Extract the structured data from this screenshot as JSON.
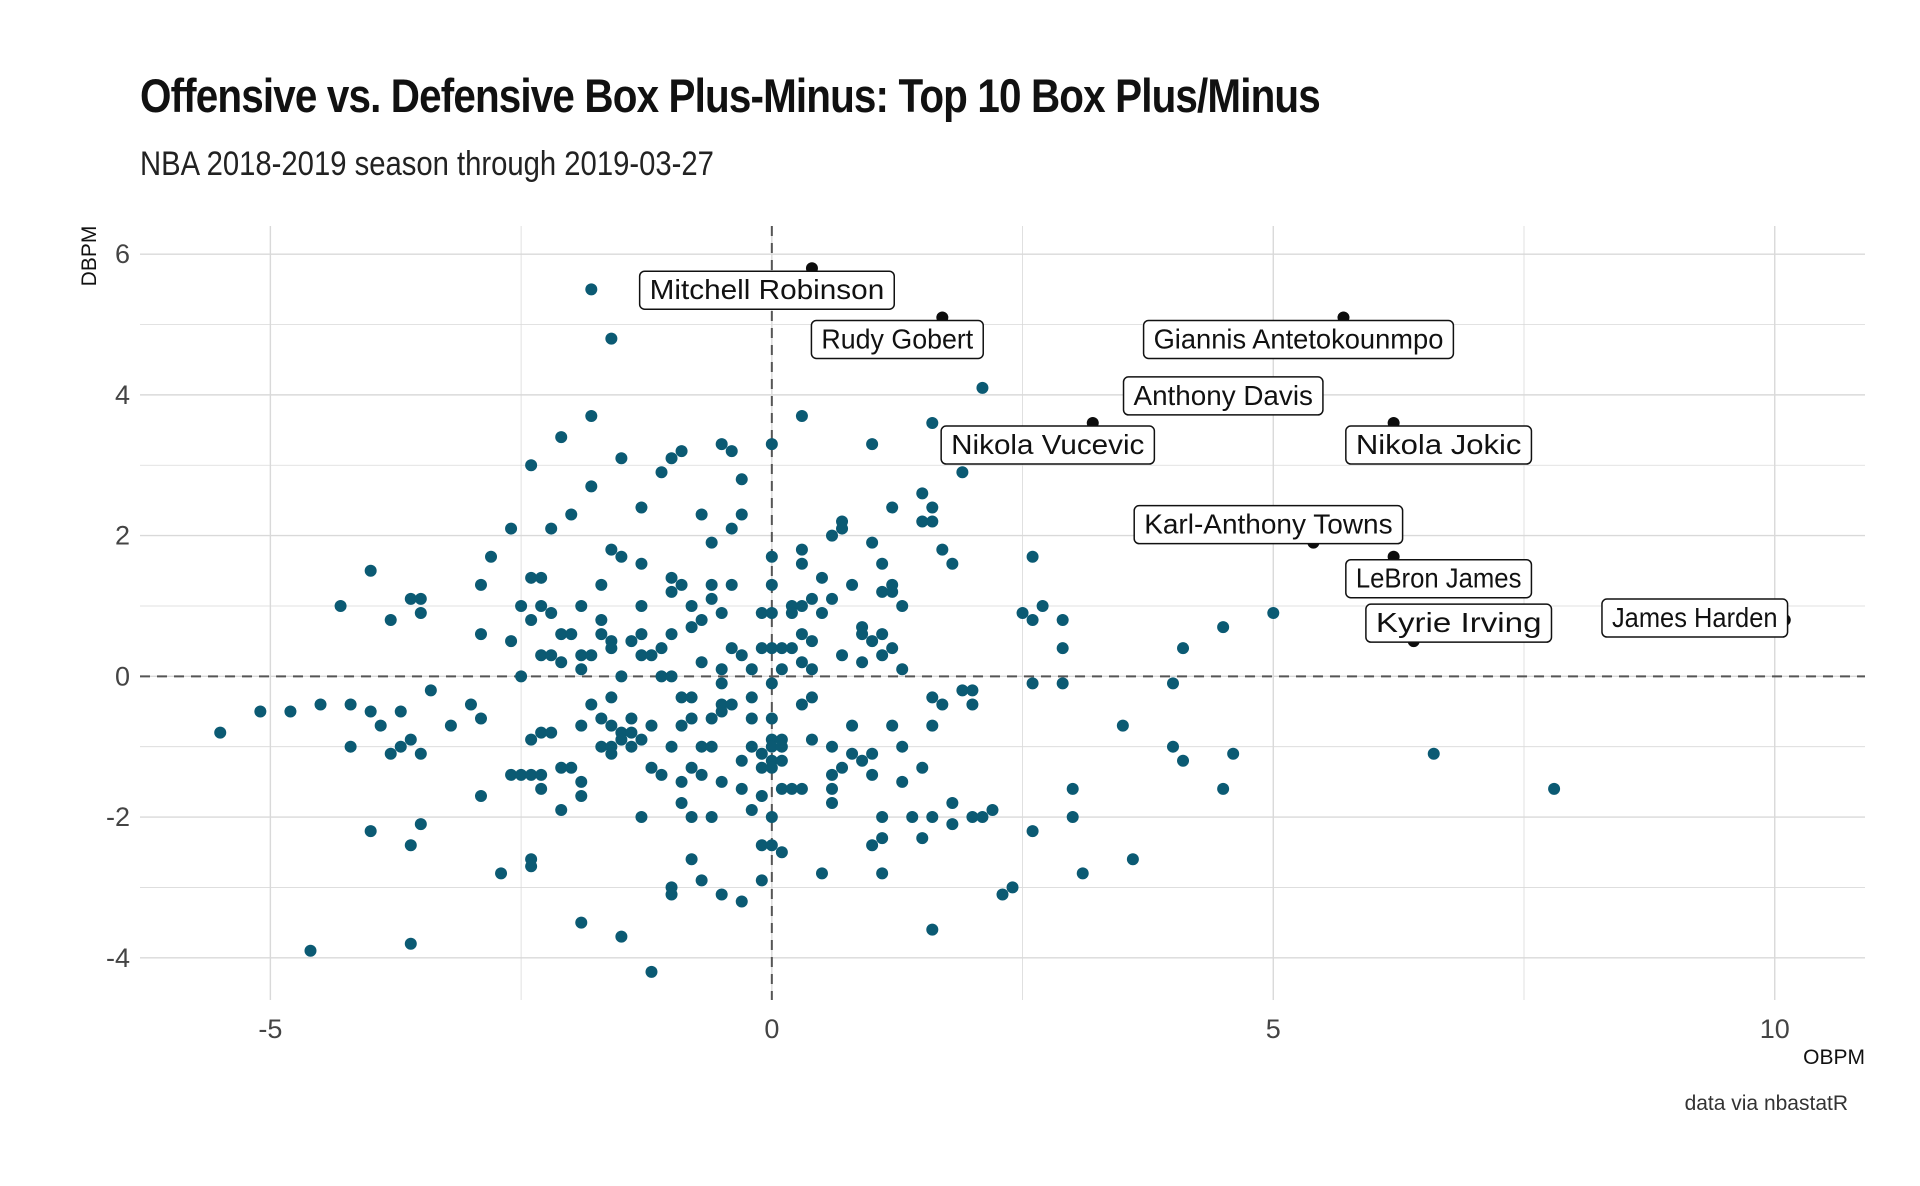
{
  "title": "Offensive vs. Defensive Box Plus-Minus: Top 10 Box Plus/Minus",
  "subtitle": "NBA 2018-2019 season through 2019-03-27",
  "caption": "data via nbastatR",
  "chart_data": {
    "type": "scatter",
    "xlabel": "OBPM",
    "ylabel": "DBPM",
    "xlim": [
      -6.3,
      10.9
    ],
    "ylim": [
      -4.6,
      6.4
    ],
    "x_ticks": [
      -5,
      0,
      5,
      10
    ],
    "y_ticks": [
      -4,
      -2,
      0,
      2,
      4,
      6
    ],
    "x_tick_labels": [
      "-5",
      "0",
      "5",
      "10"
    ],
    "y_tick_labels": [
      "-4",
      "-2",
      "0",
      "2",
      "4",
      "6"
    ],
    "reference_lines": {
      "x": 0,
      "y": 0
    },
    "grid": true,
    "colors": {
      "points": "#0b5a73",
      "highlight": "#0d0d0d",
      "grid": "#d9d9d9",
      "refline": "#555555"
    },
    "highlighted": [
      {
        "name": "Mitchell Robinson",
        "x": 0.4,
        "y": 5.8
      },
      {
        "name": "Rudy Gobert",
        "x": 1.7,
        "y": 5.1
      },
      {
        "name": "Giannis Antetokounmpo",
        "x": 5.7,
        "y": 5.1
      },
      {
        "name": "Anthony Davis",
        "x": 4.8,
        "y": 3.9
      },
      {
        "name": "Nikola Vucevic",
        "x": 3.2,
        "y": 3.6
      },
      {
        "name": "Nikola Jokic",
        "x": 6.2,
        "y": 3.6
      },
      {
        "name": "Karl-Anthony Towns",
        "x": 5.4,
        "y": 1.9
      },
      {
        "name": "LeBron James",
        "x": 6.2,
        "y": 1.7
      },
      {
        "name": "Kyrie Irving",
        "x": 6.4,
        "y": 0.5
      },
      {
        "name": "James Harden",
        "x": 10.1,
        "y": 0.8
      }
    ],
    "points": [
      [
        -5.5,
        -0.8
      ],
      [
        -5.1,
        -0.5
      ],
      [
        -4.8,
        -0.5
      ],
      [
        -4.6,
        -3.9
      ],
      [
        -4.5,
        -0.4
      ],
      [
        -4.3,
        1.0
      ],
      [
        -4.2,
        -0.4
      ],
      [
        -4.2,
        -1.0
      ],
      [
        -4.0,
        1.5
      ],
      [
        -4.0,
        -0.5
      ],
      [
        -4.0,
        -2.2
      ],
      [
        -3.9,
        -0.7
      ],
      [
        -3.8,
        0.8
      ],
      [
        -3.8,
        -1.1
      ],
      [
        -3.7,
        -0.5
      ],
      [
        -3.7,
        -1.0
      ],
      [
        -3.6,
        1.1
      ],
      [
        -3.6,
        -2.4
      ],
      [
        -3.6,
        -3.8
      ],
      [
        -3.6,
        -0.9
      ],
      [
        -3.5,
        1.1
      ],
      [
        -3.5,
        0.9
      ],
      [
        -3.5,
        -1.1
      ],
      [
        -3.5,
        -2.1
      ],
      [
        -3.4,
        -0.2
      ],
      [
        -3.2,
        -0.7
      ],
      [
        -3.0,
        -0.4
      ],
      [
        -2.9,
        1.3
      ],
      [
        -2.9,
        0.6
      ],
      [
        -2.9,
        -0.6
      ],
      [
        -2.9,
        -1.7
      ],
      [
        -2.8,
        1.7
      ],
      [
        -2.7,
        -2.8
      ],
      [
        -2.6,
        2.1
      ],
      [
        -2.6,
        0.5
      ],
      [
        -2.6,
        -1.4
      ],
      [
        -2.5,
        1.0
      ],
      [
        -2.5,
        0.0
      ],
      [
        -2.5,
        -1.4
      ],
      [
        -2.4,
        3.0
      ],
      [
        -2.4,
        1.4
      ],
      [
        -2.4,
        0.8
      ],
      [
        -2.4,
        -0.9
      ],
      [
        -2.4,
        -1.4
      ],
      [
        -2.4,
        -2.6
      ],
      [
        -2.4,
        -2.7
      ],
      [
        -2.3,
        1.4
      ],
      [
        -2.3,
        1.0
      ],
      [
        -2.3,
        0.3
      ],
      [
        -2.3,
        -0.8
      ],
      [
        -2.3,
        -1.4
      ],
      [
        -2.3,
        -1.6
      ],
      [
        -2.2,
        0.3
      ],
      [
        -2.2,
        0.9
      ],
      [
        -2.2,
        -0.8
      ],
      [
        -2.2,
        2.1
      ],
      [
        -2.1,
        0.6
      ],
      [
        -2.1,
        0.2
      ],
      [
        -2.1,
        -1.3
      ],
      [
        -2.1,
        -1.9
      ],
      [
        -2.1,
        3.4
      ],
      [
        -2.0,
        2.3
      ],
      [
        -2.0,
        0.6
      ],
      [
        -2.0,
        -1.3
      ],
      [
        -1.9,
        1.0
      ],
      [
        -1.9,
        0.3
      ],
      [
        -1.9,
        0.1
      ],
      [
        -1.9,
        -0.7
      ],
      [
        -1.9,
        -1.5
      ],
      [
        -1.9,
        -1.7
      ],
      [
        -1.9,
        -3.5
      ],
      [
        -1.8,
        5.5
      ],
      [
        -1.8,
        3.7
      ],
      [
        -1.8,
        2.7
      ],
      [
        -1.8,
        0.3
      ],
      [
        -1.8,
        -0.4
      ],
      [
        -1.7,
        1.3
      ],
      [
        -1.7,
        0.8
      ],
      [
        -1.7,
        0.6
      ],
      [
        -1.7,
        -0.6
      ],
      [
        -1.7,
        -1.0
      ],
      [
        -1.6,
        4.8
      ],
      [
        -1.6,
        1.8
      ],
      [
        -1.6,
        0.5
      ],
      [
        -1.6,
        0.4
      ],
      [
        -1.6,
        -0.3
      ],
      [
        -1.6,
        -0.7
      ],
      [
        -1.6,
        -1.0
      ],
      [
        -1.6,
        -1.1
      ],
      [
        -1.5,
        3.1
      ],
      [
        -1.5,
        1.7
      ],
      [
        -1.5,
        0.0
      ],
      [
        -1.5,
        -0.8
      ],
      [
        -1.5,
        -0.9
      ],
      [
        -1.5,
        -3.7
      ],
      [
        -1.4,
        0.5
      ],
      [
        -1.4,
        -0.6
      ],
      [
        -1.4,
        -0.8
      ],
      [
        -1.4,
        -1.0
      ],
      [
        -1.3,
        2.4
      ],
      [
        -1.3,
        1.6
      ],
      [
        -1.3,
        1.0
      ],
      [
        -1.3,
        0.6
      ],
      [
        -1.3,
        0.3
      ],
      [
        -1.3,
        -0.9
      ],
      [
        -1.3,
        -2.0
      ],
      [
        -1.2,
        0.3
      ],
      [
        -1.2,
        -0.7
      ],
      [
        -1.2,
        -1.3
      ],
      [
        -1.2,
        -4.2
      ],
      [
        -1.1,
        2.9
      ],
      [
        -1.1,
        0.4
      ],
      [
        -1.1,
        0.0
      ],
      [
        -1.1,
        -1.4
      ],
      [
        -1.0,
        3.1
      ],
      [
        -1.0,
        1.4
      ],
      [
        -1.0,
        1.2
      ],
      [
        -1.0,
        0.6
      ],
      [
        -1.0,
        0.0
      ],
      [
        -1.0,
        -1.0
      ],
      [
        -1.0,
        -3.0
      ],
      [
        -1.0,
        -3.1
      ],
      [
        -0.9,
        3.2
      ],
      [
        -0.9,
        1.3
      ],
      [
        -0.9,
        -0.3
      ],
      [
        -0.9,
        -0.7
      ],
      [
        -0.9,
        -1.5
      ],
      [
        -0.9,
        -1.8
      ],
      [
        -0.8,
        1.0
      ],
      [
        -0.8,
        0.7
      ],
      [
        -0.8,
        -0.3
      ],
      [
        -0.8,
        -0.6
      ],
      [
        -0.8,
        -1.3
      ],
      [
        -0.8,
        -2.0
      ],
      [
        -0.8,
        -2.6
      ],
      [
        -0.7,
        2.3
      ],
      [
        -0.7,
        0.8
      ],
      [
        -0.7,
        0.2
      ],
      [
        -0.7,
        -1.0
      ],
      [
        -0.7,
        -1.4
      ],
      [
        -0.7,
        -2.9
      ],
      [
        -0.6,
        1.9
      ],
      [
        -0.6,
        1.3
      ],
      [
        -0.6,
        1.1
      ],
      [
        -0.6,
        -0.6
      ],
      [
        -0.6,
        -1.0
      ],
      [
        -0.6,
        -2.0
      ],
      [
        -0.5,
        3.3
      ],
      [
        -0.5,
        0.9
      ],
      [
        -0.5,
        0.1
      ],
      [
        -0.5,
        -0.1
      ],
      [
        -0.5,
        -0.4
      ],
      [
        -0.5,
        -0.5
      ],
      [
        -0.5,
        -1.5
      ],
      [
        -0.5,
        -3.1
      ],
      [
        -0.4,
        3.2
      ],
      [
        -0.4,
        2.1
      ],
      [
        -0.4,
        1.3
      ],
      [
        -0.4,
        0.4
      ],
      [
        -0.4,
        -0.4
      ],
      [
        -0.3,
        2.8
      ],
      [
        -0.3,
        2.3
      ],
      [
        -0.3,
        0.3
      ],
      [
        -0.3,
        -1.2
      ],
      [
        -0.3,
        -1.6
      ],
      [
        -0.3,
        -3.2
      ],
      [
        -0.2,
        0.1
      ],
      [
        -0.2,
        -0.3
      ],
      [
        -0.2,
        -0.6
      ],
      [
        -0.2,
        -1.0
      ],
      [
        -0.2,
        -1.9
      ],
      [
        -0.1,
        0.9
      ],
      [
        -0.1,
        0.4
      ],
      [
        -0.1,
        -1.1
      ],
      [
        -0.1,
        -1.3
      ],
      [
        -0.1,
        -1.7
      ],
      [
        -0.1,
        -2.4
      ],
      [
        -0.1,
        -2.9
      ],
      [
        0.0,
        3.3
      ],
      [
        0.0,
        1.7
      ],
      [
        0.0,
        1.3
      ],
      [
        0.0,
        0.9
      ],
      [
        0.0,
        0.4
      ],
      [
        0.0,
        -0.1
      ],
      [
        0.0,
        -0.6
      ],
      [
        0.0,
        -0.9
      ],
      [
        0.0,
        -1.0
      ],
      [
        0.0,
        -1.2
      ],
      [
        0.0,
        -1.3
      ],
      [
        0.0,
        -2.0
      ],
      [
        0.0,
        -2.4
      ],
      [
        0.1,
        0.4
      ],
      [
        0.1,
        0.1
      ],
      [
        0.1,
        -0.9
      ],
      [
        0.1,
        -1.0
      ],
      [
        0.1,
        -1.2
      ],
      [
        0.1,
        -1.6
      ],
      [
        0.1,
        -2.5
      ],
      [
        0.2,
        1.0
      ],
      [
        0.2,
        0.9
      ],
      [
        0.2,
        0.4
      ],
      [
        0.2,
        -1.6
      ],
      [
        0.3,
        3.7
      ],
      [
        0.3,
        1.8
      ],
      [
        0.3,
        1.6
      ],
      [
        0.3,
        1.0
      ],
      [
        0.3,
        0.6
      ],
      [
        0.3,
        0.2
      ],
      [
        0.3,
        -0.4
      ],
      [
        0.3,
        -1.6
      ],
      [
        0.4,
        1.1
      ],
      [
        0.4,
        0.5
      ],
      [
        0.4,
        0.1
      ],
      [
        0.4,
        -0.3
      ],
      [
        0.4,
        -0.9
      ],
      [
        0.5,
        1.4
      ],
      [
        0.5,
        0.9
      ],
      [
        0.5,
        -2.8
      ],
      [
        0.6,
        2.0
      ],
      [
        0.6,
        1.1
      ],
      [
        0.6,
        -1.0
      ],
      [
        0.6,
        -1.4
      ],
      [
        0.6,
        -1.6
      ],
      [
        0.6,
        -1.8
      ],
      [
        0.7,
        2.2
      ],
      [
        0.7,
        2.1
      ],
      [
        0.7,
        0.3
      ],
      [
        0.7,
        -1.3
      ],
      [
        0.8,
        1.3
      ],
      [
        0.8,
        -0.7
      ],
      [
        0.8,
        -1.1
      ],
      [
        0.9,
        0.6
      ],
      [
        0.9,
        0.7
      ],
      [
        0.9,
        0.2
      ],
      [
        0.9,
        -1.2
      ],
      [
        1.0,
        3.3
      ],
      [
        1.0,
        1.9
      ],
      [
        1.0,
        0.5
      ],
      [
        1.0,
        -1.1
      ],
      [
        1.0,
        -1.4
      ],
      [
        1.0,
        -2.4
      ],
      [
        1.1,
        1.6
      ],
      [
        1.1,
        1.2
      ],
      [
        1.1,
        0.6
      ],
      [
        1.1,
        0.3
      ],
      [
        1.1,
        -2.0
      ],
      [
        1.1,
        -2.3
      ],
      [
        1.1,
        -2.8
      ],
      [
        1.2,
        2.4
      ],
      [
        1.2,
        1.3
      ],
      [
        1.2,
        1.2
      ],
      [
        1.2,
        0.4
      ],
      [
        1.2,
        -0.7
      ],
      [
        1.3,
        1.0
      ],
      [
        1.3,
        0.1
      ],
      [
        1.3,
        -1.0
      ],
      [
        1.3,
        -1.5
      ],
      [
        1.4,
        -2.0
      ],
      [
        1.5,
        2.6
      ],
      [
        1.5,
        2.2
      ],
      [
        1.5,
        -1.3
      ],
      [
        1.5,
        -2.3
      ],
      [
        1.6,
        3.6
      ],
      [
        1.6,
        2.4
      ],
      [
        1.6,
        2.2
      ],
      [
        1.6,
        -0.3
      ],
      [
        1.6,
        -0.7
      ],
      [
        1.6,
        -2.0
      ],
      [
        1.6,
        -3.6
      ],
      [
        1.7,
        1.8
      ],
      [
        1.7,
        -0.4
      ],
      [
        1.8,
        1.6
      ],
      [
        1.8,
        -1.8
      ],
      [
        1.8,
        -2.1
      ],
      [
        1.9,
        2.9
      ],
      [
        1.9,
        -0.2
      ],
      [
        2.0,
        -0.2
      ],
      [
        2.0,
        -0.4
      ],
      [
        2.0,
        -2.0
      ],
      [
        2.1,
        4.1
      ],
      [
        2.1,
        -2.0
      ],
      [
        2.2,
        -1.9
      ],
      [
        2.3,
        -3.1
      ],
      [
        2.4,
        -3.0
      ],
      [
        2.5,
        0.9
      ],
      [
        2.6,
        1.7
      ],
      [
        2.6,
        0.8
      ],
      [
        2.6,
        -0.1
      ],
      [
        2.6,
        -2.2
      ],
      [
        2.7,
        1.0
      ],
      [
        2.9,
        0.8
      ],
      [
        2.9,
        0.4
      ],
      [
        2.9,
        -0.1
      ],
      [
        3.0,
        -1.6
      ],
      [
        3.0,
        -2.0
      ],
      [
        3.1,
        -2.8
      ],
      [
        3.5,
        -0.7
      ],
      [
        3.6,
        -2.6
      ],
      [
        4.0,
        -0.1
      ],
      [
        4.0,
        -1.0
      ],
      [
        4.1,
        0.4
      ],
      [
        4.1,
        -1.2
      ],
      [
        4.5,
        0.7
      ],
      [
        4.5,
        -1.6
      ],
      [
        4.6,
        -1.1
      ],
      [
        5.0,
        0.9
      ],
      [
        6.6,
        -1.1
      ],
      [
        7.8,
        -1.6
      ]
    ]
  }
}
